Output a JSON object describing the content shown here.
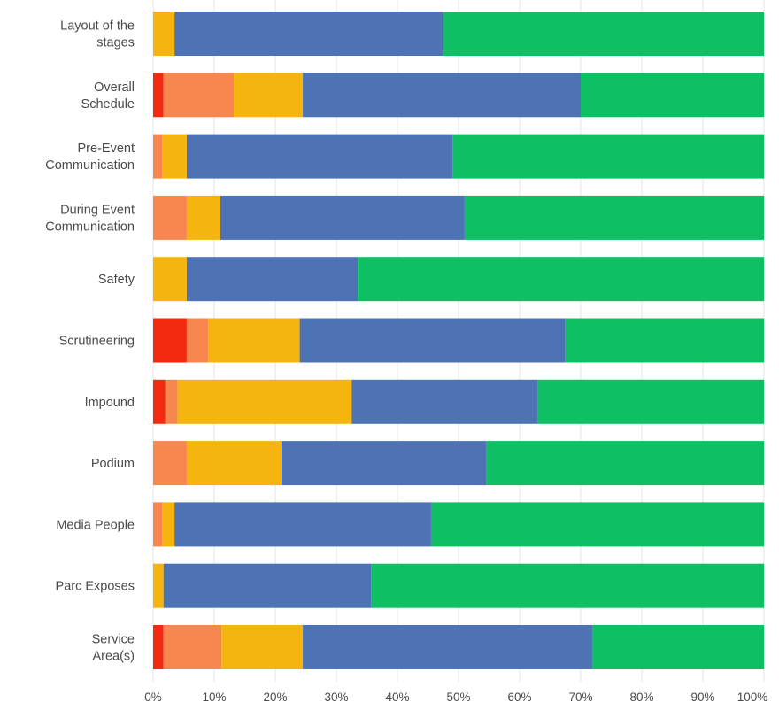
{
  "chart_data": {
    "type": "bar",
    "orientation": "horizontal",
    "stacked": true,
    "categories": [
      [
        "Layout of the",
        "stages"
      ],
      [
        "Overall",
        "Schedule"
      ],
      [
        "Pre-Event",
        "Communication"
      ],
      [
        "During Event",
        "Communication"
      ],
      [
        "Safety"
      ],
      [
        "Scrutineering"
      ],
      [
        "Impound"
      ],
      [
        "Podium"
      ],
      [
        "Media People"
      ],
      [
        "Parc Exposes"
      ],
      [
        "Service",
        "Area(s)"
      ]
    ],
    "series": [
      {
        "color": "#f42a10",
        "values": [
          0,
          1.7,
          0,
          0,
          0,
          5.5,
          2,
          0,
          0,
          0,
          1.7
        ]
      },
      {
        "color": "#f7874f",
        "values": [
          0,
          11.5,
          1.5,
          5.5,
          0,
          3.5,
          2,
          5.5,
          1.5,
          0,
          9.5
        ]
      },
      {
        "color": "#f6b50e",
        "values": [
          3.5,
          11.3,
          4,
          5.5,
          5.5,
          15,
          28.5,
          15.5,
          2,
          1.7,
          13.3
        ]
      },
      {
        "color": "#4e73b5",
        "values": [
          44,
          45.5,
          43.5,
          40,
          28,
          43.5,
          30.5,
          33.5,
          42,
          34,
          47.5
        ]
      },
      {
        "color": "#0ebf63",
        "values": [
          52.5,
          30,
          51,
          49,
          66.5,
          32.5,
          37,
          45.5,
          54.5,
          64.3,
          28
        ]
      }
    ],
    "x_ticks": [
      "0%",
      "10%",
      "20%",
      "30%",
      "40%",
      "50%",
      "60%",
      "70%",
      "80%",
      "90%",
      "100%"
    ],
    "xlim": [
      0,
      100
    ],
    "grid": true
  }
}
